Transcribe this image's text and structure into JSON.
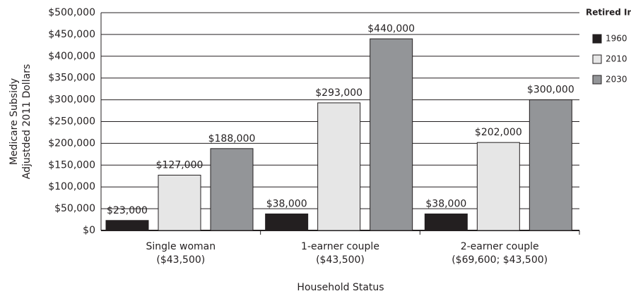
{
  "chart_data": {
    "type": "bar",
    "categories": [
      [
        "Single woman",
        "($43,500)"
      ],
      [
        "1-earner couple",
        "($43,500)"
      ],
      [
        "2-earner couple",
        "($69,600; $43,500)"
      ]
    ],
    "series": [
      {
        "name": "1960",
        "color": "#231f20",
        "values": [
          23000,
          38000,
          38000
        ],
        "value_labels": [
          "$23,000",
          "$38,000",
          "$38,000"
        ]
      },
      {
        "name": "2010",
        "color": "#e6e6e6",
        "values": [
          127000,
          293000,
          202000
        ],
        "value_labels": [
          "$127,000",
          "$293,000",
          "$202,000"
        ]
      },
      {
        "name": "2030",
        "color": "#939598",
        "values": [
          188000,
          440000,
          300000
        ],
        "value_labels": [
          "$188,000",
          "$440,000",
          "$300,000"
        ]
      }
    ],
    "ylabel": [
      "Medicare Subsidy",
      "Adjustded 2011 Dollars"
    ],
    "xlabel": "Household Status",
    "legend_title": "Retired In",
    "ylim": [
      0,
      500000
    ],
    "yticks": [
      {
        "value": 0,
        "label": "$0"
      },
      {
        "value": 50000,
        "label": "$50,000"
      },
      {
        "value": 100000,
        "label": "$100,000"
      },
      {
        "value": 150000,
        "label": "$150,000"
      },
      {
        "value": 200000,
        "label": "$200,000"
      },
      {
        "value": 250000,
        "label": "$250,000"
      },
      {
        "value": 300000,
        "label": "$300,000"
      },
      {
        "value": 350000,
        "label": "$350,000"
      },
      {
        "value": 400000,
        "label": "$400,000"
      },
      {
        "value": 450000,
        "label": "$450,000"
      },
      {
        "value": 500000,
        "label": "$500,000"
      }
    ],
    "grid": true,
    "legend": "right"
  }
}
